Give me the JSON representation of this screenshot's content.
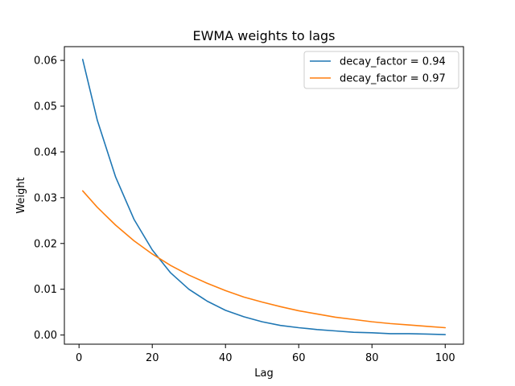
{
  "chart_data": {
    "type": "line",
    "title": "EWMA weights to lags",
    "xlabel": "Lag",
    "ylabel": "Weight",
    "xlim": [
      -4,
      105
    ],
    "ylim": [
      -0.002,
      0.063
    ],
    "x_ticks": [
      0,
      20,
      40,
      60,
      80,
      100
    ],
    "y_ticks": [
      0.0,
      0.01,
      0.02,
      0.03,
      0.04,
      0.05,
      0.06
    ],
    "x_tick_labels": [
      "0",
      "20",
      "40",
      "60",
      "80",
      "100"
    ],
    "y_tick_labels": [
      "0.00",
      "0.01",
      "0.02",
      "0.03",
      "0.04",
      "0.05",
      "0.06"
    ],
    "grid": false,
    "legend_position": "top-right",
    "x": [
      1,
      5,
      10,
      15,
      20,
      25,
      30,
      35,
      40,
      45,
      50,
      55,
      60,
      65,
      70,
      75,
      80,
      85,
      90,
      95,
      100
    ],
    "series": [
      {
        "name": "decay_factor = 0.94",
        "color": "#1f77b4",
        "values": [
          0.0602,
          0.0469,
          0.0345,
          0.0253,
          0.0186,
          0.0136,
          0.01,
          0.0074,
          0.0054,
          0.004,
          0.0029,
          0.0021,
          0.0016,
          0.0012,
          0.0009,
          0.0006,
          0.0005,
          0.0003,
          0.0003,
          0.0002,
          0.0001
        ]
      },
      {
        "name": "decay_factor = 0.97",
        "color": "#ff7f0e",
        "values": [
          0.0315,
          0.0279,
          0.024,
          0.0206,
          0.0177,
          0.0152,
          0.0131,
          0.0113,
          0.0097,
          0.0083,
          0.0072,
          0.0062,
          0.0053,
          0.0046,
          0.0039,
          0.0034,
          0.0029,
          0.0025,
          0.0022,
          0.0019,
          0.0016
        ]
      }
    ]
  }
}
